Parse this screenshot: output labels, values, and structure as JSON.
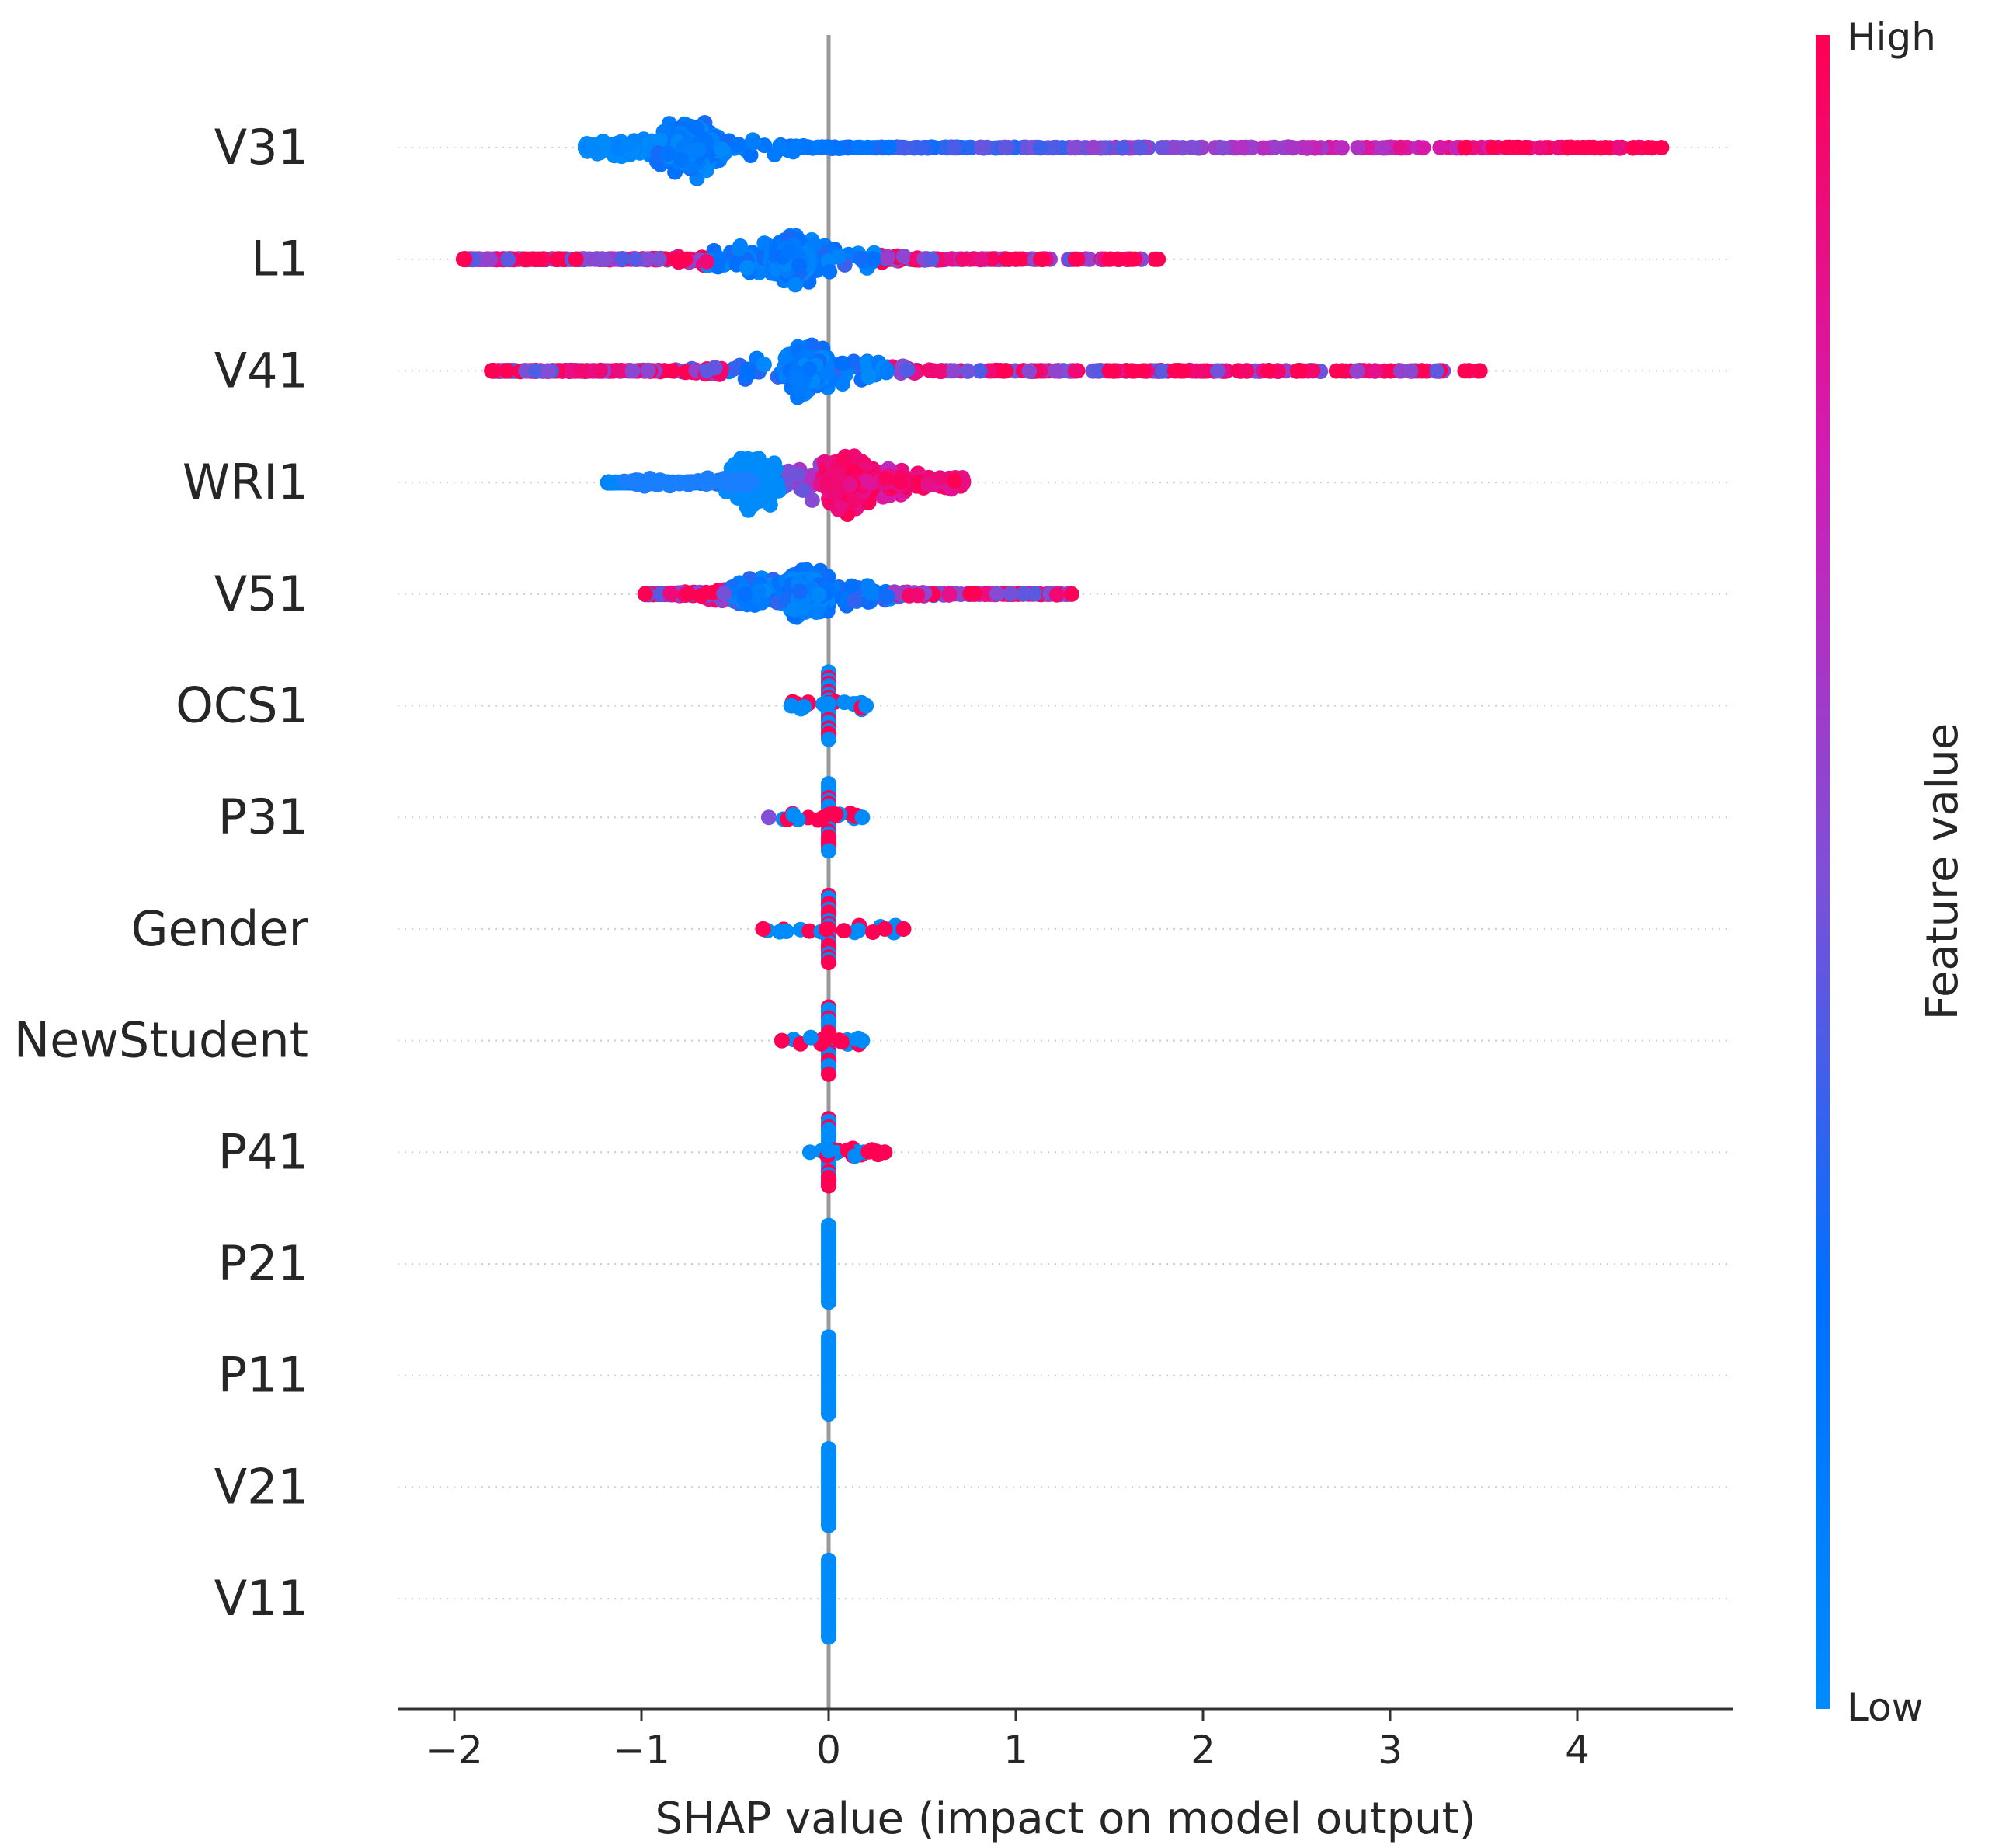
{
  "chart_data": {
    "type": "scatter",
    "subtype": "shap-beeswarm-summary",
    "xlabel": "SHAP value (impact on model output)",
    "xlim": [
      -2.3,
      4.8
    ],
    "xticks": [
      -2,
      -1,
      0,
      1,
      2,
      3,
      4
    ],
    "xtick_labels": [
      "−2",
      "−1",
      "0",
      "1",
      "2",
      "3",
      "4"
    ],
    "colorbar": {
      "title": "Feature value",
      "high_label": "High",
      "low_label": "Low",
      "low_color": "#008bfb",
      "high_color": "#ff0052"
    },
    "features": [
      {
        "name": "V31",
        "min": -1.3,
        "max": 4.45,
        "core": [
          -0.75,
          0.18
        ],
        "dens": 0.8,
        "skew": 0.12,
        "reds": [
          3.4,
          3.55,
          3.62,
          3.68,
          3.72,
          3.95,
          4.0,
          4.15,
          4.3,
          4.38,
          4.45
        ]
      },
      {
        "name": "L1",
        "min": -1.95,
        "max": 1.8,
        "core": [
          -0.2,
          0.12
        ],
        "dens": 0.65,
        "skew": -0.05,
        "reds": [
          -1.95,
          -1.62,
          -1.55,
          -1.45,
          -1.35,
          1.5,
          1.55,
          1.62
        ]
      },
      {
        "name": "V41",
        "min": -1.8,
        "max": 3.5,
        "core": [
          -0.12,
          0.12
        ],
        "dens": 0.62,
        "skew": 0.0,
        "reds": [
          -1.8,
          -1.72,
          1.5,
          1.62,
          1.68,
          1.85,
          2.35,
          2.52,
          3.4,
          3.48
        ],
        "purples": [
          -1.5
        ]
      },
      {
        "name": "WRI1",
        "min": -1.18,
        "max": 0.72,
        "core": [
          0.1,
          0.14
        ],
        "dens": 0.8,
        "skew": 0.0,
        "split": true,
        "blueCore": [
          -0.4,
          0.12
        ]
      },
      {
        "name": "V51",
        "min": -0.98,
        "max": 1.3,
        "core": [
          -0.1,
          0.13
        ],
        "dens": 0.6,
        "skew": 0.0,
        "reds": [
          -0.98,
          -0.75
        ]
      },
      {
        "name": "OCS1",
        "min": -0.2,
        "max": 0.2,
        "narrow": true,
        "mixed": true
      },
      {
        "name": "P31",
        "min": -0.32,
        "max": 0.18,
        "narrow": true,
        "mixed": true
      },
      {
        "name": "Gender",
        "min": -0.35,
        "max": 0.4,
        "narrow": true,
        "mixed": true,
        "reds": [
          -0.35,
          0.3,
          0.4
        ]
      },
      {
        "name": "NewStudent",
        "min": -0.25,
        "max": 0.18,
        "narrow": true,
        "mixed": true,
        "reds": [
          -0.25
        ]
      },
      {
        "name": "P41",
        "min": -0.1,
        "max": 0.3,
        "narrow": true,
        "mixed": false,
        "reds": [
          0.3
        ]
      },
      {
        "name": "P21",
        "min": 0.0,
        "max": 0.0,
        "narrow": true,
        "flat": true
      },
      {
        "name": "P11",
        "min": 0.0,
        "max": 0.0,
        "narrow": true,
        "flat": true
      },
      {
        "name": "V21",
        "min": 0.0,
        "max": 0.0,
        "narrow": true,
        "flat": true
      },
      {
        "name": "V11",
        "min": 0.0,
        "max": 0.0,
        "narrow": true,
        "flat": true
      }
    ]
  }
}
